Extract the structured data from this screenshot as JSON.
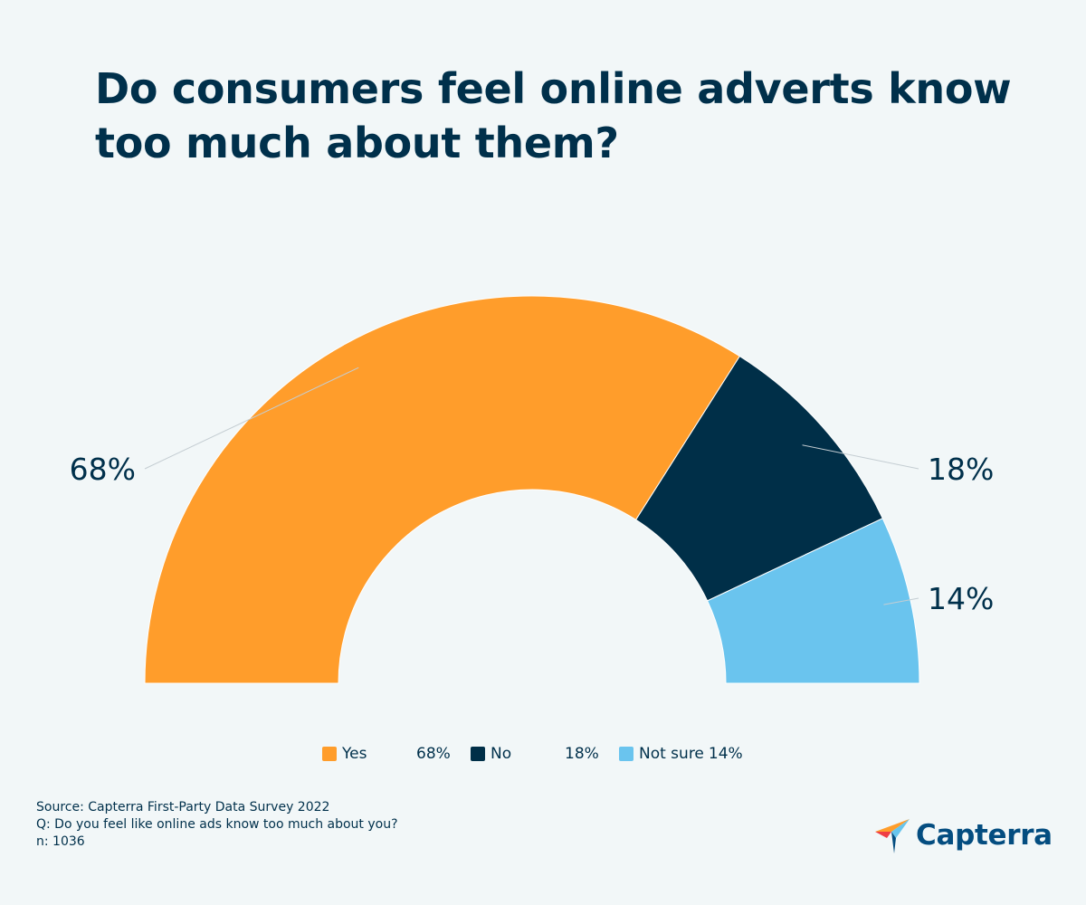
{
  "title": "Do consumers feel online adverts know too much about them?",
  "chart_data": {
    "type": "pie",
    "variant": "semi-donut",
    "categories": [
      "Yes",
      "No",
      "Not sure"
    ],
    "values": [
      68,
      18,
      14
    ],
    "unit": "%",
    "data_labels": [
      "68%",
      "18%",
      "14%"
    ],
    "colors": [
      "#ff9d2b",
      "#002f48",
      "#6ac4ee"
    ],
    "legend": {
      "position": "bottom-center",
      "entries": [
        {
          "name": "Yes",
          "value": "68%"
        },
        {
          "name": "No",
          "value": "18%"
        },
        {
          "name": "Not sure",
          "value": "14%"
        }
      ]
    }
  },
  "source": {
    "line1": "Source: Capterra First-Party Data Survey 2022",
    "line2": "Q: Do you feel like online ads know too much about you?",
    "line3": "n: 1036"
  },
  "logo": {
    "text": "Capterra",
    "icon": "capterra-arrow-icon",
    "colors": [
      "#ff9d2b",
      "#68c5ed",
      "#044d80",
      "#ef3e44"
    ]
  }
}
